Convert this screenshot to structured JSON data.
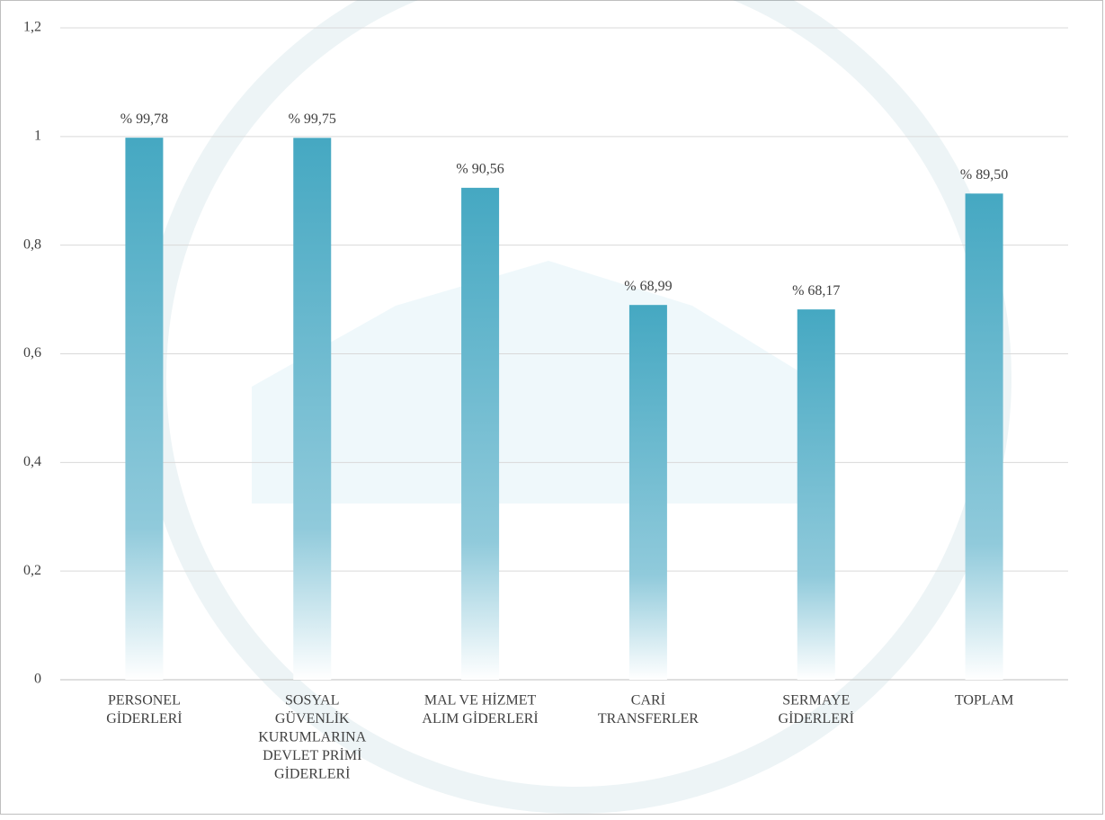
{
  "chart_data": {
    "type": "bar",
    "categories": [
      [
        "PERSONEL",
        "GİDERLERİ"
      ],
      [
        "SOSYAL",
        "GÜVENLİK",
        "KURUMLARINA",
        "DEVLET PRİMİ",
        "GİDERLERİ"
      ],
      [
        "MAL VE HİZMET",
        "ALIM GİDERLERİ"
      ],
      [
        "CARİ",
        "TRANSFERLER"
      ],
      [
        "SERMAYE",
        "GİDERLERİ"
      ],
      [
        "TOPLAM"
      ]
    ],
    "values": [
      0.9978,
      0.9975,
      0.9056,
      0.6899,
      0.6817,
      0.895
    ],
    "value_labels": [
      "% 99,78",
      "% 99,75",
      "% 90,56",
      "% 68,99",
      "% 68,17",
      "% 89,50"
    ],
    "color": "#45a8c2",
    "ylim": [
      0,
      1.2
    ],
    "yticks": [
      0,
      {
        "value": 0.2,
        "label": "0,2"
      },
      {
        "value": 0.4,
        "label": "0,4"
      },
      {
        "value": 0.6,
        "label": "0,6"
      },
      {
        "value": 0.8,
        "label": "0,8"
      },
      1,
      {
        "value": 1.2,
        "label": "1,2"
      }
    ],
    "grid": true
  }
}
